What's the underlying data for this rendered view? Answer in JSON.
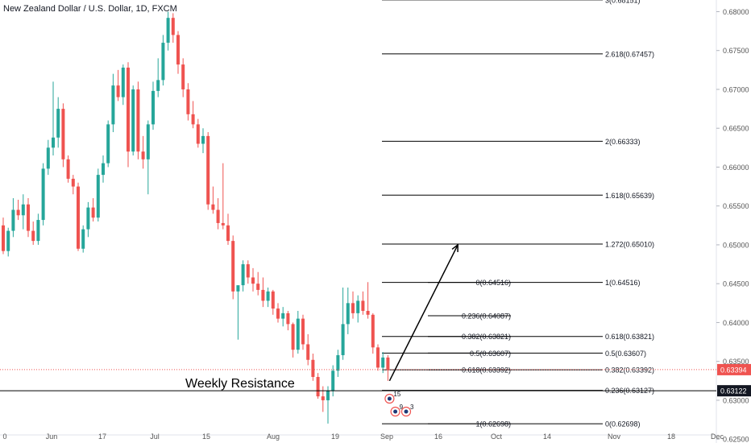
{
  "header": {
    "title": "New Zealand Dollar / U.S. Dollar, 1D, FXCM"
  },
  "colors": {
    "up": "#26a69a",
    "down": "#ef5350",
    "line": "#000000",
    "current_price": "#ef5350",
    "axis_text": "#555555",
    "support_label_bg": "#131722"
  },
  "chart_data": {
    "type": "candlestick",
    "title": "New Zealand Dollar / U.S. Dollar, 1D, FXCM",
    "ylim": [
      0.6245,
      0.6815
    ],
    "y_ticks": [
      "0.68000",
      "0.67500",
      "0.67000",
      "0.66500",
      "0.66000",
      "0.65500",
      "0.65000",
      "0.64500",
      "0.64000",
      "0.63500",
      "0.63000",
      "0.62500"
    ],
    "x_ticks": [
      "0",
      "Jun",
      "17",
      "Jul",
      "15",
      "Aug",
      "19",
      "Sep",
      "16",
      "Oct",
      "14",
      "Nov",
      "18",
      "Dec"
    ],
    "candles": [
      {
        "o": 0.6525,
        "h": 0.6535,
        "l": 0.6488,
        "c": 0.6492
      },
      {
        "o": 0.6492,
        "h": 0.6522,
        "l": 0.6485,
        "c": 0.6518
      },
      {
        "o": 0.6518,
        "h": 0.656,
        "l": 0.651,
        "c": 0.6545
      },
      {
        "o": 0.6545,
        "h": 0.6558,
        "l": 0.6532,
        "c": 0.6538
      },
      {
        "o": 0.6538,
        "h": 0.6565,
        "l": 0.652,
        "c": 0.6552
      },
      {
        "o": 0.6552,
        "h": 0.656,
        "l": 0.651,
        "c": 0.6518
      },
      {
        "o": 0.6518,
        "h": 0.653,
        "l": 0.65,
        "c": 0.6505
      },
      {
        "o": 0.6505,
        "h": 0.654,
        "l": 0.65,
        "c": 0.6532
      },
      {
        "o": 0.6532,
        "h": 0.6605,
        "l": 0.6525,
        "c": 0.6598
      },
      {
        "o": 0.6598,
        "h": 0.6635,
        "l": 0.659,
        "c": 0.6625
      },
      {
        "o": 0.6625,
        "h": 0.671,
        "l": 0.6615,
        "c": 0.6638
      },
      {
        "o": 0.6638,
        "h": 0.669,
        "l": 0.6625,
        "c": 0.6675
      },
      {
        "o": 0.6675,
        "h": 0.6682,
        "l": 0.66,
        "c": 0.661
      },
      {
        "o": 0.661,
        "h": 0.6615,
        "l": 0.658,
        "c": 0.6585
      },
      {
        "o": 0.6585,
        "h": 0.659,
        "l": 0.6565,
        "c": 0.6575
      },
      {
        "o": 0.6575,
        "h": 0.658,
        "l": 0.6492,
        "c": 0.6495
      },
      {
        "o": 0.6495,
        "h": 0.6525,
        "l": 0.649,
        "c": 0.652
      },
      {
        "o": 0.652,
        "h": 0.6555,
        "l": 0.651,
        "c": 0.6548
      },
      {
        "o": 0.6548,
        "h": 0.656,
        "l": 0.653,
        "c": 0.6535
      },
      {
        "o": 0.6535,
        "h": 0.6598,
        "l": 0.653,
        "c": 0.659
      },
      {
        "o": 0.659,
        "h": 0.6615,
        "l": 0.658,
        "c": 0.6605
      },
      {
        "o": 0.6605,
        "h": 0.666,
        "l": 0.66,
        "c": 0.6655
      },
      {
        "o": 0.6655,
        "h": 0.672,
        "l": 0.6645,
        "c": 0.6705
      },
      {
        "o": 0.6705,
        "h": 0.6725,
        "l": 0.6685,
        "c": 0.669
      },
      {
        "o": 0.669,
        "h": 0.6732,
        "l": 0.668,
        "c": 0.6728
      },
      {
        "o": 0.6728,
        "h": 0.6735,
        "l": 0.66,
        "c": 0.662
      },
      {
        "o": 0.662,
        "h": 0.6705,
        "l": 0.6615,
        "c": 0.67
      },
      {
        "o": 0.67,
        "h": 0.671,
        "l": 0.661,
        "c": 0.662
      },
      {
        "o": 0.662,
        "h": 0.664,
        "l": 0.6598,
        "c": 0.661
      },
      {
        "o": 0.661,
        "h": 0.666,
        "l": 0.6565,
        "c": 0.6655
      },
      {
        "o": 0.6655,
        "h": 0.671,
        "l": 0.6648,
        "c": 0.6698
      },
      {
        "o": 0.6698,
        "h": 0.674,
        "l": 0.669,
        "c": 0.6712
      },
      {
        "o": 0.6712,
        "h": 0.677,
        "l": 0.6705,
        "c": 0.676
      },
      {
        "o": 0.676,
        "h": 0.68,
        "l": 0.675,
        "c": 0.6792
      },
      {
        "o": 0.6792,
        "h": 0.6798,
        "l": 0.676,
        "c": 0.677
      },
      {
        "o": 0.677,
        "h": 0.6775,
        "l": 0.672,
        "c": 0.6732
      },
      {
        "o": 0.6732,
        "h": 0.674,
        "l": 0.669,
        "c": 0.67
      },
      {
        "o": 0.67,
        "h": 0.6708,
        "l": 0.666,
        "c": 0.6668
      },
      {
        "o": 0.6668,
        "h": 0.6685,
        "l": 0.665,
        "c": 0.6655
      },
      {
        "o": 0.6655,
        "h": 0.6662,
        "l": 0.6625,
        "c": 0.663
      },
      {
        "o": 0.663,
        "h": 0.665,
        "l": 0.6618,
        "c": 0.664
      },
      {
        "o": 0.664,
        "h": 0.6645,
        "l": 0.6545,
        "c": 0.6552
      },
      {
        "o": 0.6552,
        "h": 0.6575,
        "l": 0.654,
        "c": 0.6545
      },
      {
        "o": 0.6545,
        "h": 0.656,
        "l": 0.652,
        "c": 0.6528
      },
      {
        "o": 0.6528,
        "h": 0.6605,
        "l": 0.652,
        "c": 0.6525
      },
      {
        "o": 0.6525,
        "h": 0.654,
        "l": 0.65,
        "c": 0.6505
      },
      {
        "o": 0.6505,
        "h": 0.6512,
        "l": 0.643,
        "c": 0.644
      },
      {
        "o": 0.644,
        "h": 0.6445,
        "l": 0.6378,
        "c": 0.6448
      },
      {
        "o": 0.6448,
        "h": 0.648,
        "l": 0.644,
        "c": 0.6475
      },
      {
        "o": 0.6475,
        "h": 0.648,
        "l": 0.645,
        "c": 0.6458
      },
      {
        "o": 0.6458,
        "h": 0.647,
        "l": 0.644,
        "c": 0.645
      },
      {
        "o": 0.645,
        "h": 0.6465,
        "l": 0.6435,
        "c": 0.6442
      },
      {
        "o": 0.6442,
        "h": 0.6458,
        "l": 0.642,
        "c": 0.6428
      },
      {
        "o": 0.6428,
        "h": 0.6445,
        "l": 0.642,
        "c": 0.644
      },
      {
        "o": 0.644,
        "h": 0.6442,
        "l": 0.641,
        "c": 0.6418
      },
      {
        "o": 0.6418,
        "h": 0.6425,
        "l": 0.64,
        "c": 0.6405
      },
      {
        "o": 0.6405,
        "h": 0.642,
        "l": 0.6395,
        "c": 0.6412
      },
      {
        "o": 0.6412,
        "h": 0.6415,
        "l": 0.639,
        "c": 0.6398
      },
      {
        "o": 0.6398,
        "h": 0.64,
        "l": 0.6355,
        "c": 0.6365
      },
      {
        "o": 0.6365,
        "h": 0.6415,
        "l": 0.636,
        "c": 0.6405
      },
      {
        "o": 0.6405,
        "h": 0.641,
        "l": 0.6365,
        "c": 0.6372
      },
      {
        "o": 0.6372,
        "h": 0.6385,
        "l": 0.6345,
        "c": 0.6352
      },
      {
        "o": 0.6352,
        "h": 0.636,
        "l": 0.6325,
        "c": 0.633
      },
      {
        "o": 0.633,
        "h": 0.6335,
        "l": 0.6302,
        "c": 0.6305
      },
      {
        "o": 0.6305,
        "h": 0.6318,
        "l": 0.6285,
        "c": 0.63
      },
      {
        "o": 0.63,
        "h": 0.6318,
        "l": 0.627,
        "c": 0.6312
      },
      {
        "o": 0.6312,
        "h": 0.6345,
        "l": 0.6305,
        "c": 0.6338
      },
      {
        "o": 0.6338,
        "h": 0.6365,
        "l": 0.633,
        "c": 0.6358
      },
      {
        "o": 0.6358,
        "h": 0.6445,
        "l": 0.6352,
        "c": 0.6398
      },
      {
        "o": 0.6398,
        "h": 0.6445,
        "l": 0.6385,
        "c": 0.6425
      },
      {
        "o": 0.6425,
        "h": 0.644,
        "l": 0.6405,
        "c": 0.6412
      },
      {
        "o": 0.6412,
        "h": 0.6435,
        "l": 0.64,
        "c": 0.6428
      },
      {
        "o": 0.6428,
        "h": 0.644,
        "l": 0.641,
        "c": 0.6415
      },
      {
        "o": 0.6415,
        "h": 0.6452,
        "l": 0.6405,
        "c": 0.641
      },
      {
        "o": 0.641,
        "h": 0.6412,
        "l": 0.636,
        "c": 0.6368
      },
      {
        "o": 0.6368,
        "h": 0.6372,
        "l": 0.6338,
        "c": 0.6342
      },
      {
        "o": 0.6342,
        "h": 0.6362,
        "l": 0.6335,
        "c": 0.6355
      },
      {
        "o": 0.6355,
        "h": 0.6358,
        "l": 0.6325,
        "c": 0.6339
      }
    ],
    "fib_levels": [
      {
        "label": "3(0.68151)",
        "value": 0.68151,
        "set": "ext"
      },
      {
        "label": "2.618(0.67457)",
        "value": 0.67457,
        "set": "ext"
      },
      {
        "label": "2(0.66333)",
        "value": 0.66333,
        "set": "ext"
      },
      {
        "label": "1.618(0.65639)",
        "value": 0.65639,
        "set": "ext"
      },
      {
        "label": "1.272(0.65010)",
        "value": 0.6501,
        "set": "ext"
      },
      {
        "label": "1(0.64516)",
        "value": 0.64516,
        "set": "ext"
      },
      {
        "label": "0.618(0.63821)",
        "value": 0.63821,
        "set": "ext"
      },
      {
        "label": "0.5(0.63607)",
        "value": 0.63607,
        "set": "ext"
      },
      {
        "label": "0.382(0.63392)",
        "value": 0.63392,
        "set": "ext"
      },
      {
        "label": "0.236(0.63127)",
        "value": 0.63127,
        "set": "ext"
      },
      {
        "label": "0(0.62698)",
        "value": 0.62698,
        "set": "ext"
      },
      {
        "label": "0(0.64516)",
        "value": 0.64516,
        "set": "ret"
      },
      {
        "label": "0.236(0.64087)",
        "value": 0.64087,
        "set": "ret"
      },
      {
        "label": "0.382(0.63821)",
        "value": 0.63821,
        "set": "ret"
      },
      {
        "label": "0.5(0.63607)",
        "value": 0.63607,
        "set": "ret"
      },
      {
        "label": "0.618(0.63392)",
        "value": 0.63392,
        "set": "ret"
      },
      {
        "label": "1(0.62698)",
        "value": 0.62698,
        "set": "ret"
      }
    ],
    "support": {
      "label": "Weekly Resistance",
      "value": 0.63122,
      "price_label": "0.63122"
    },
    "current_price": {
      "value": 0.63394,
      "price_label": "0.63394"
    },
    "arrow": {
      "from_candle": 77,
      "from": 0.6325,
      "to_candle": 91,
      "to": 0.65
    },
    "event_markers": [
      {
        "label": "15",
        "candle": 77
      },
      {
        "label": "9",
        "candle": 78
      },
      {
        "label": "3",
        "candle": 80
      }
    ]
  }
}
